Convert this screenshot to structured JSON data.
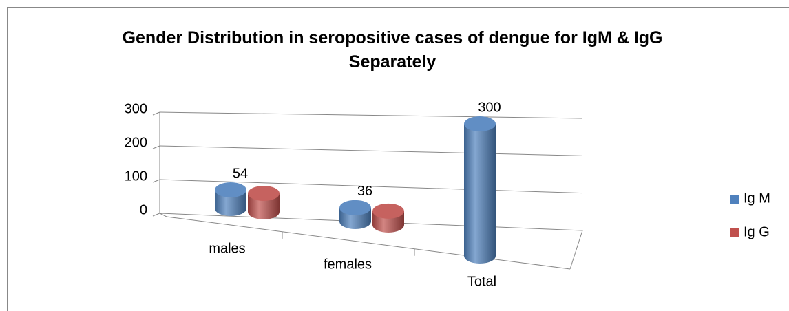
{
  "chart_data": {
    "type": "bar3d",
    "title": "Gender Distribution in seropositive cases of dengue for IgM & IgG Separately",
    "categories": [
      "males",
      "females",
      "Total"
    ],
    "series": [
      {
        "name": "Ig M",
        "color": "#4f81bd",
        "values": [
          54,
          36,
          300
        ]
      },
      {
        "name": "Ig G",
        "color": "#c0504d",
        "values": [
          54,
          36,
          null
        ]
      }
    ],
    "ylim": [
      0,
      300
    ],
    "yticks": [
      0,
      100,
      200,
      300
    ],
    "grid": true,
    "legend": "right",
    "data_labels_series": 0
  }
}
